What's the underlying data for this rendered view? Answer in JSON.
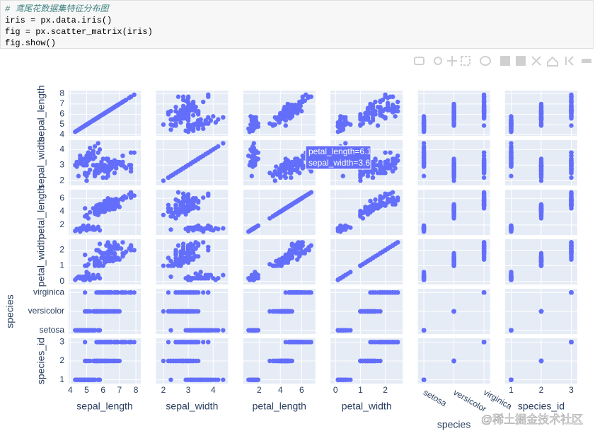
{
  "code": {
    "lines": [
      "# 鸢尾花数据集特征分布图",
      "iris = px.data.iris()",
      "fig = px.scatter_matrix(iris)",
      "fig.show()"
    ]
  },
  "chart_data": {
    "type": "scatter_matrix",
    "color": "#636efa",
    "grid": true,
    "dimensions": [
      {
        "label": "sepal_length",
        "lim": [
          3.9,
          8.3
        ],
        "ticks": [
          4,
          5,
          6,
          7,
          8
        ]
      },
      {
        "label": "sepal_width",
        "lim": [
          1.7,
          4.6
        ],
        "ticks": [
          2,
          3,
          4
        ]
      },
      {
        "label": "petal_length",
        "lim": [
          0.5,
          7.3
        ],
        "ticks": [
          2,
          4,
          6
        ]
      },
      {
        "label": "petal_width",
        "lim": [
          -0.2,
          2.7
        ],
        "ticks": [
          0,
          1,
          2
        ]
      },
      {
        "label": "species",
        "lim": [
          -0.2,
          2.2
        ],
        "categories": [
          "setosa",
          "versicolor",
          "virginica"
        ]
      },
      {
        "label": "species_id",
        "lim": [
          0.8,
          3.2
        ],
        "ticks": [
          1,
          2,
          3
        ]
      }
    ],
    "groups": [
      {
        "species_id": 1,
        "sepal_length": [
          5.1,
          4.9,
          4.7,
          4.6,
          5.0,
          5.4,
          4.6,
          5.0,
          4.4,
          4.9,
          5.4,
          4.8,
          4.8,
          4.3,
          5.8,
          5.7,
          5.4,
          5.1,
          5.7,
          5.1,
          5.4,
          5.1,
          4.6,
          5.1,
          4.8,
          5.0,
          5.0,
          5.2,
          5.2,
          4.7,
          4.8,
          5.4,
          5.2,
          5.5,
          4.9,
          5.0,
          5.5,
          4.9,
          4.4,
          5.1,
          5.0,
          4.5,
          4.4,
          5.0,
          5.1,
          4.8,
          5.1,
          4.6,
          5.3,
          5.0
        ],
        "sepal_width": [
          3.5,
          3.0,
          3.2,
          3.1,
          3.6,
          3.9,
          3.4,
          3.4,
          2.9,
          3.1,
          3.7,
          3.4,
          3.0,
          3.0,
          4.0,
          4.4,
          3.9,
          3.5,
          3.8,
          3.8,
          3.4,
          3.7,
          3.6,
          3.3,
          3.4,
          3.0,
          3.4,
          3.5,
          3.4,
          3.2,
          3.1,
          3.4,
          4.1,
          4.2,
          3.1,
          3.2,
          3.5,
          3.1,
          3.0,
          3.4,
          3.5,
          2.3,
          3.2,
          3.5,
          3.8,
          3.0,
          3.8,
          3.2,
          3.7,
          3.3
        ],
        "petal_length": [
          1.4,
          1.4,
          1.3,
          1.5,
          1.4,
          1.7,
          1.4,
          1.5,
          1.4,
          1.5,
          1.5,
          1.6,
          1.4,
          1.1,
          1.2,
          1.5,
          1.3,
          1.4,
          1.7,
          1.5,
          1.7,
          1.5,
          1.0,
          1.7,
          1.9,
          1.6,
          1.6,
          1.5,
          1.4,
          1.6,
          1.6,
          1.5,
          1.5,
          1.4,
          1.5,
          1.2,
          1.3,
          1.5,
          1.3,
          1.5,
          1.3,
          1.3,
          1.3,
          1.6,
          1.9,
          1.4,
          1.6,
          1.4,
          1.5,
          1.4
        ],
        "petal_width": [
          0.2,
          0.2,
          0.2,
          0.2,
          0.2,
          0.4,
          0.3,
          0.2,
          0.2,
          0.1,
          0.2,
          0.2,
          0.1,
          0.1,
          0.2,
          0.4,
          0.4,
          0.3,
          0.3,
          0.3,
          0.2,
          0.4,
          0.2,
          0.5,
          0.2,
          0.2,
          0.4,
          0.2,
          0.2,
          0.2,
          0.2,
          0.4,
          0.1,
          0.2,
          0.1,
          0.2,
          0.2,
          0.1,
          0.2,
          0.2,
          0.3,
          0.3,
          0.2,
          0.6,
          0.4,
          0.3,
          0.2,
          0.2,
          0.2,
          0.2
        ]
      },
      {
        "species_id": 2,
        "sepal_length": [
          7.0,
          6.4,
          6.9,
          5.5,
          6.5,
          5.7,
          6.3,
          4.9,
          6.6,
          5.2,
          5.0,
          5.9,
          6.0,
          6.1,
          5.6,
          6.7,
          5.6,
          5.8,
          6.2,
          5.6,
          5.9,
          6.1,
          6.3,
          6.1,
          6.4,
          6.6,
          6.8,
          6.7,
          6.0,
          5.7,
          5.5,
          5.5,
          5.8,
          6.0,
          5.4,
          6.0,
          6.7,
          6.3,
          5.6,
          5.5,
          5.5,
          6.1,
          5.8,
          5.0,
          5.6,
          5.7,
          5.7,
          6.2,
          5.1,
          5.7
        ],
        "sepal_width": [
          3.2,
          3.2,
          3.1,
          2.3,
          2.8,
          2.8,
          3.3,
          2.4,
          2.9,
          2.7,
          2.0,
          3.0,
          2.2,
          2.9,
          2.9,
          3.1,
          3.0,
          2.7,
          2.2,
          2.5,
          3.2,
          2.8,
          2.5,
          2.8,
          2.9,
          3.0,
          2.8,
          3.0,
          2.9,
          2.6,
          2.4,
          2.4,
          2.7,
          2.7,
          3.0,
          3.4,
          3.1,
          2.3,
          3.0,
          2.5,
          2.6,
          3.0,
          2.6,
          2.3,
          2.7,
          3.0,
          2.9,
          2.9,
          2.5,
          2.8
        ],
        "petal_length": [
          4.7,
          4.5,
          4.9,
          4.0,
          4.6,
          4.5,
          4.7,
          3.3,
          4.6,
          3.9,
          3.5,
          4.2,
          4.0,
          4.7,
          3.6,
          4.4,
          4.5,
          4.1,
          4.5,
          3.9,
          4.8,
          4.0,
          4.9,
          4.7,
          4.3,
          4.4,
          4.8,
          5.0,
          4.5,
          3.5,
          3.8,
          3.7,
          3.9,
          5.1,
          4.5,
          4.5,
          4.7,
          4.4,
          4.1,
          4.0,
          4.4,
          4.6,
          4.0,
          3.3,
          4.2,
          4.2,
          4.2,
          4.3,
          3.0,
          4.1
        ],
        "petal_width": [
          1.4,
          1.5,
          1.5,
          1.3,
          1.5,
          1.3,
          1.6,
          1.0,
          1.3,
          1.4,
          1.0,
          1.5,
          1.0,
          1.4,
          1.3,
          1.4,
          1.5,
          1.0,
          1.5,
          1.1,
          1.8,
          1.3,
          1.5,
          1.2,
          1.3,
          1.4,
          1.4,
          1.7,
          1.5,
          1.0,
          1.1,
          1.0,
          1.2,
          1.6,
          1.5,
          1.6,
          1.5,
          1.3,
          1.3,
          1.3,
          1.2,
          1.4,
          1.2,
          1.0,
          1.3,
          1.2,
          1.3,
          1.3,
          1.1,
          1.3
        ]
      },
      {
        "species_id": 3,
        "sepal_length": [
          6.3,
          5.8,
          7.1,
          6.3,
          6.5,
          7.6,
          4.9,
          7.3,
          6.7,
          7.2,
          6.5,
          6.4,
          6.8,
          5.7,
          5.8,
          6.4,
          6.5,
          7.7,
          7.7,
          6.0,
          6.9,
          5.6,
          7.7,
          6.3,
          6.7,
          7.2,
          6.2,
          6.1,
          6.4,
          7.2,
          7.4,
          7.9,
          6.4,
          6.3,
          6.1,
          7.7,
          6.3,
          6.4,
          6.0,
          6.9,
          6.7,
          6.9,
          5.8,
          6.8,
          6.7,
          6.7,
          6.3,
          6.5,
          6.2,
          5.9
        ],
        "sepal_width": [
          3.3,
          2.7,
          3.0,
          2.9,
          3.0,
          3.0,
          2.5,
          2.9,
          2.5,
          3.6,
          3.2,
          2.7,
          3.0,
          2.5,
          2.8,
          3.2,
          3.0,
          3.8,
          2.6,
          2.2,
          3.2,
          2.8,
          2.8,
          2.7,
          3.3,
          3.2,
          2.8,
          3.0,
          2.8,
          3.0,
          2.8,
          3.8,
          2.8,
          2.8,
          2.6,
          3.0,
          3.4,
          3.1,
          3.0,
          3.1,
          3.1,
          3.1,
          2.7,
          3.2,
          3.3,
          3.0,
          2.5,
          3.0,
          3.4,
          3.0
        ],
        "petal_length": [
          6.0,
          5.1,
          5.9,
          5.6,
          5.8,
          6.6,
          4.5,
          6.3,
          5.8,
          6.1,
          5.1,
          5.3,
          5.5,
          5.0,
          5.1,
          5.3,
          5.5,
          6.7,
          6.9,
          5.0,
          5.7,
          4.9,
          6.7,
          4.9,
          5.7,
          6.0,
          4.8,
          4.9,
          5.6,
          5.8,
          6.1,
          6.4,
          5.6,
          5.1,
          5.6,
          6.1,
          5.6,
          5.5,
          4.8,
          5.4,
          5.6,
          5.1,
          5.1,
          5.9,
          5.7,
          5.2,
          5.0,
          5.2,
          5.4,
          5.1
        ],
        "petal_width": [
          2.5,
          1.9,
          2.1,
          1.8,
          2.2,
          2.1,
          1.7,
          1.8,
          1.8,
          2.5,
          2.0,
          1.9,
          2.1,
          2.0,
          2.4,
          2.3,
          1.8,
          2.2,
          2.3,
          1.5,
          2.3,
          2.0,
          2.0,
          1.8,
          2.1,
          1.8,
          1.8,
          1.8,
          2.1,
          1.6,
          1.9,
          2.0,
          2.2,
          1.5,
          1.4,
          2.3,
          2.4,
          1.8,
          1.8,
          2.1,
          2.4,
          2.3,
          1.9,
          2.3,
          2.5,
          2.3,
          1.9,
          2.0,
          2.3,
          1.8
        ]
      }
    ]
  },
  "tooltip": {
    "lines": [
      "petal_length=6.1",
      "sepal_width=3.6"
    ]
  },
  "watermark": "@稀土掘金技术社区"
}
